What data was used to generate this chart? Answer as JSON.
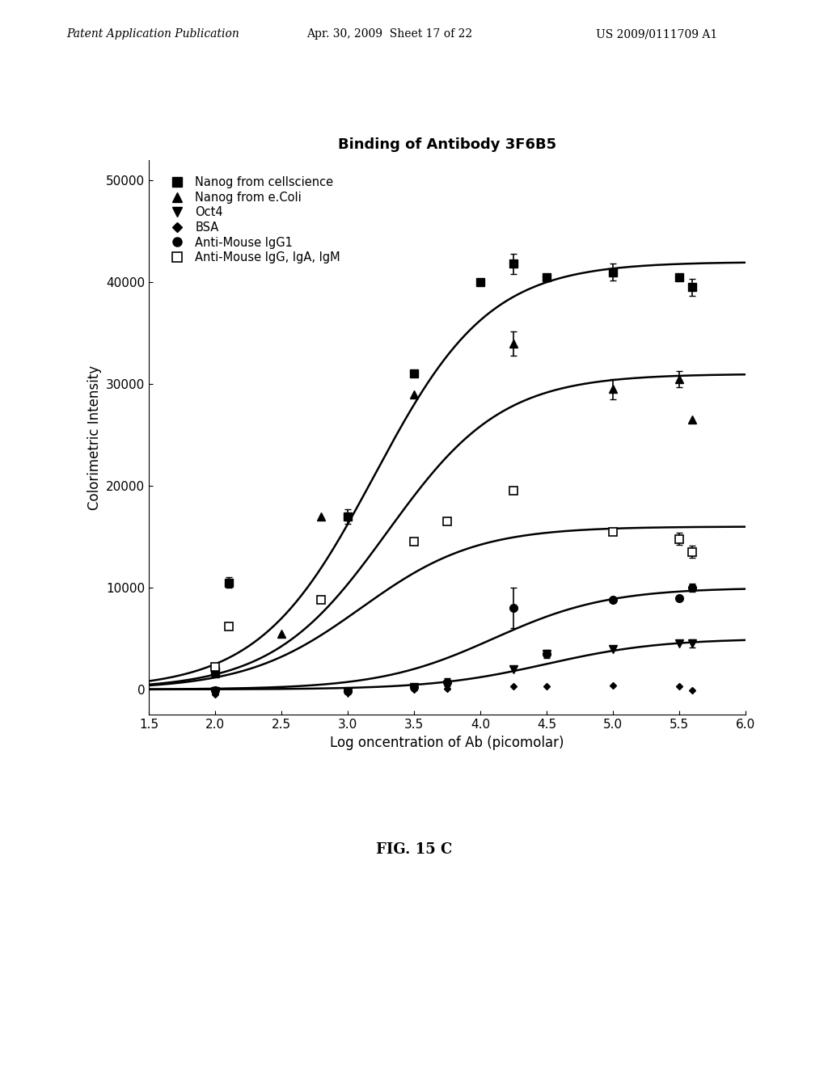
{
  "title": "Binding of Antibody 3F6B5",
  "xlabel": "Log oncentration of Ab (picomolar)",
  "ylabel": "Colorimetric Intensity",
  "fig_label": "FIG. 15 C",
  "header_left": "Patent Application Publication",
  "header_center": "Apr. 30, 2009  Sheet 17 of 22",
  "header_right": "US 2009/0111709 A1",
  "xlim": [
    1.5,
    6.0
  ],
  "ylim": [
    -2500,
    52000
  ],
  "yticks": [
    0,
    10000,
    20000,
    30000,
    40000,
    50000
  ],
  "xticks": [
    1.5,
    2.0,
    2.5,
    3.0,
    3.5,
    4.0,
    4.5,
    5.0,
    5.5,
    6.0
  ],
  "series": [
    {
      "label": "Nanog from cellscience",
      "marker": "s",
      "fillstyle": "full",
      "x": [
        2.0,
        2.1,
        3.0,
        3.5,
        4.0,
        4.25,
        4.5,
        5.0,
        5.5,
        5.6
      ],
      "y": [
        1800,
        10500,
        17000,
        31000,
        40000,
        41800,
        40500,
        41000,
        40500,
        39500
      ],
      "yerr": [
        300,
        500,
        700,
        0,
        0,
        1000,
        0,
        800,
        0,
        800
      ],
      "fit": true,
      "Bmax": 42000,
      "logEC50": 3.2
    },
    {
      "label": "Nanog from e.Coli",
      "marker": "^",
      "fillstyle": "full",
      "x": [
        2.0,
        2.5,
        2.8,
        3.5,
        4.25,
        5.0,
        5.5,
        5.6
      ],
      "y": [
        1600,
        5500,
        17000,
        29000,
        34000,
        29500,
        30500,
        26500
      ],
      "yerr": [
        300,
        0,
        0,
        0,
        1200,
        1000,
        800,
        0
      ],
      "fit": true,
      "Bmax": 31000,
      "logEC50": 3.3
    },
    {
      "label": "Oct4",
      "marker": "v",
      "fillstyle": "full",
      "x": [
        2.0,
        3.0,
        3.5,
        3.75,
        4.25,
        4.5,
        5.0,
        5.5,
        5.6
      ],
      "y": [
        -200,
        -300,
        200,
        500,
        2000,
        3500,
        4000,
        4500,
        4500
      ],
      "yerr": [
        200,
        0,
        0,
        400,
        0,
        400,
        0,
        0,
        400
      ],
      "fit": true,
      "Bmax": 5000,
      "logEC50": 4.5
    },
    {
      "label": "BSA",
      "marker": "D",
      "fillstyle": "full",
      "markersize": 4,
      "x": [
        2.0,
        3.0,
        3.5,
        3.75,
        4.25,
        4.5,
        5.0,
        5.5,
        5.6
      ],
      "y": [
        -500,
        -200,
        0,
        100,
        300,
        300,
        400,
        300,
        -100
      ],
      "yerr": [
        0,
        0,
        0,
        0,
        0,
        0,
        0,
        0,
        0
      ],
      "fit": false
    },
    {
      "label": "Anti-Mouse IgG1",
      "marker": "o",
      "fillstyle": "full",
      "x": [
        2.0,
        3.0,
        3.5,
        3.75,
        4.25,
        4.5,
        5.0,
        5.5,
        5.6
      ],
      "y": [
        -100,
        -200,
        200,
        700,
        8000,
        3500,
        8800,
        9000,
        10000
      ],
      "yerr": [
        0,
        0,
        0,
        400,
        2000,
        0,
        0,
        0,
        400
      ],
      "fit": true,
      "Bmax": 10000,
      "logEC50": 4.1
    },
    {
      "label": "Anti-Mouse IgG, IgA, IgM",
      "marker": "s",
      "fillstyle": "none",
      "x": [
        2.0,
        2.1,
        2.8,
        3.5,
        3.75,
        4.25,
        5.0,
        5.5,
        5.6
      ],
      "y": [
        2200,
        6200,
        8800,
        14500,
        16500,
        19500,
        15500,
        14800,
        13500
      ],
      "yerr": [
        200,
        0,
        0,
        0,
        0,
        0,
        0,
        600,
        600
      ],
      "fit": true,
      "Bmax": 16000,
      "logEC50": 3.1
    }
  ]
}
